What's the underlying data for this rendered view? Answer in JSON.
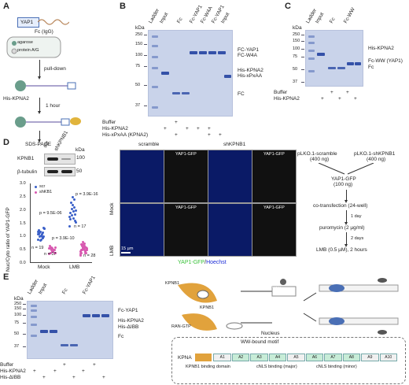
{
  "panels": {
    "A": {
      "label": "A",
      "yap1": "YAP1",
      "fc": "Fc (IgG)",
      "agarose": "agarose",
      "protein": "protein A/G",
      "pulldown": "pull-down",
      "kpna2": "His-KPNA2",
      "hour": "1 hour",
      "sds": "SDS-PAGE"
    },
    "B": {
      "label": "B",
      "kda": "kDa",
      "lanes": [
        "Ladder",
        "Input",
        "Fc",
        "Fc-YAP1",
        "Fc-W4A",
        "Fc-YAP1",
        "Input"
      ],
      "markers": [
        "250",
        "150",
        "100",
        "75",
        "50",
        "37"
      ],
      "right_labels": [
        "FC-YAP1",
        "FC-W4A",
        "His-KPNA2",
        "His-xPxAA",
        "FC"
      ],
      "rows": [
        "Buffer",
        "His-KPNA2",
        "His-xPxAA (KPNA2)"
      ],
      "row_values": [
        [
          "",
          "",
          "+",
          "",
          "",
          "",
          ""
        ],
        [
          "",
          "+",
          "",
          "+",
          "+",
          "+",
          ""
        ],
        [
          "",
          "",
          "+",
          "",
          "",
          "+",
          "+"
        ]
      ]
    },
    "C": {
      "label": "C",
      "kda": "kDa",
      "lanes": [
        "Ladder",
        "Input",
        "Fc",
        "Fc-WW"
      ],
      "markers": [
        "250",
        "150",
        "100",
        "75",
        "50",
        "37"
      ],
      "right_labels": [
        "His-KPNA2",
        "Fc-WW (YAP1)",
        "Fc"
      ],
      "rows": [
        "Buffer",
        "His-KPNA2"
      ],
      "row_values": [
        [
          "",
          "",
          "+",
          "",
          "+",
          ""
        ],
        [
          "",
          "+",
          "",
          "+",
          "",
          "+"
        ]
      ]
    },
    "D": {
      "label": "D",
      "blot_labels": [
        "KPNB1",
        "β-tubulin"
      ],
      "blot_header": [
        "scr",
        "shKPNB1"
      ],
      "kda": "kDa",
      "blot_markers": [
        "100",
        "50"
      ],
      "ylabel": "Nuc/Cyto ratio of YAP1-GFP",
      "legend": [
        "scr",
        "shKB1"
      ],
      "yticks": [
        "0.0",
        "0.5",
        "1.0",
        "1.5",
        "2.0",
        "2.5",
        "3.0"
      ],
      "xcats": [
        "Mock",
        "LMB"
      ],
      "pvals": [
        "p = 9.5E-06",
        "p = 3.9E-16",
        "p = 3.9E-10"
      ],
      "nvals": [
        "n = 19",
        "n = 17",
        "n = 17",
        "n = 28"
      ],
      "micro_col": [
        "scramble",
        "shKPNB1"
      ],
      "micro_row": [
        "Mock",
        "LMB"
      ],
      "micro_tile": "YAP1-GFP",
      "scalebar": "15 µm",
      "caption_gfp": "YAP1-GFP",
      "caption_sep": "/",
      "caption_hoechst": "Hoechst",
      "flow": {
        "top_left": "pLKO.1-scramble",
        "top_left_sub": "(400 ng)",
        "top_right": "pLKO.1-shKPNB1",
        "top_right_sub": "(400 ng)",
        "steps": [
          "YAP1-GFP",
          "(100 ng)",
          "co-transfection (24-well)",
          "puromycin (2 µg/ml)",
          "LMB (0.5 µM), 2 hours"
        ],
        "arrows": [
          "1 day",
          "2 days"
        ]
      }
    },
    "E": {
      "label": "E",
      "kda": "kDa",
      "lanes": [
        "Ladder",
        "Input",
        "Fc",
        "Fc-YAP1"
      ],
      "markers": [
        "250",
        "150",
        "100",
        "75",
        "50",
        "37"
      ],
      "right_labels": [
        "Fc-YAP1",
        "His-KPNA2",
        "His-ΔIBB",
        "Fc"
      ],
      "rows": [
        "Buffer",
        "His-KPNA2",
        "His-ΔIBB"
      ],
      "row_values": [
        [
          "",
          "",
          "",
          "+",
          "",
          "",
          "+",
          ""
        ],
        [
          "+",
          "",
          "+",
          "",
          "",
          "+",
          "",
          ""
        ],
        [
          "",
          "+",
          "",
          "",
          "+",
          "",
          "",
          "+"
        ]
      ],
      "diagram": {
        "kpnb1": "KPNB1",
        "ran": "RAN-GTP",
        "nucleus": "Nucleus",
        "ww": "WW",
        "motif": "WW-bound motif",
        "kpna": "KPNA",
        "domains": [
          "A1",
          "A2",
          "A3",
          "A4",
          "A5",
          "A6",
          "A7",
          "A8",
          "A9",
          "A10"
        ],
        "bottom_labels": [
          "KPNB1 binding domain",
          "cNLS binding (major)",
          "cNLS binding (minor)"
        ]
      }
    }
  },
  "colors": {
    "gel": "#c9d3ea",
    "band": "#3451a8",
    "gfp": "#3cc23c",
    "hoechst": "#1d2dd6",
    "scr": "#3a5fc8",
    "shkb": "#d85ab0"
  }
}
